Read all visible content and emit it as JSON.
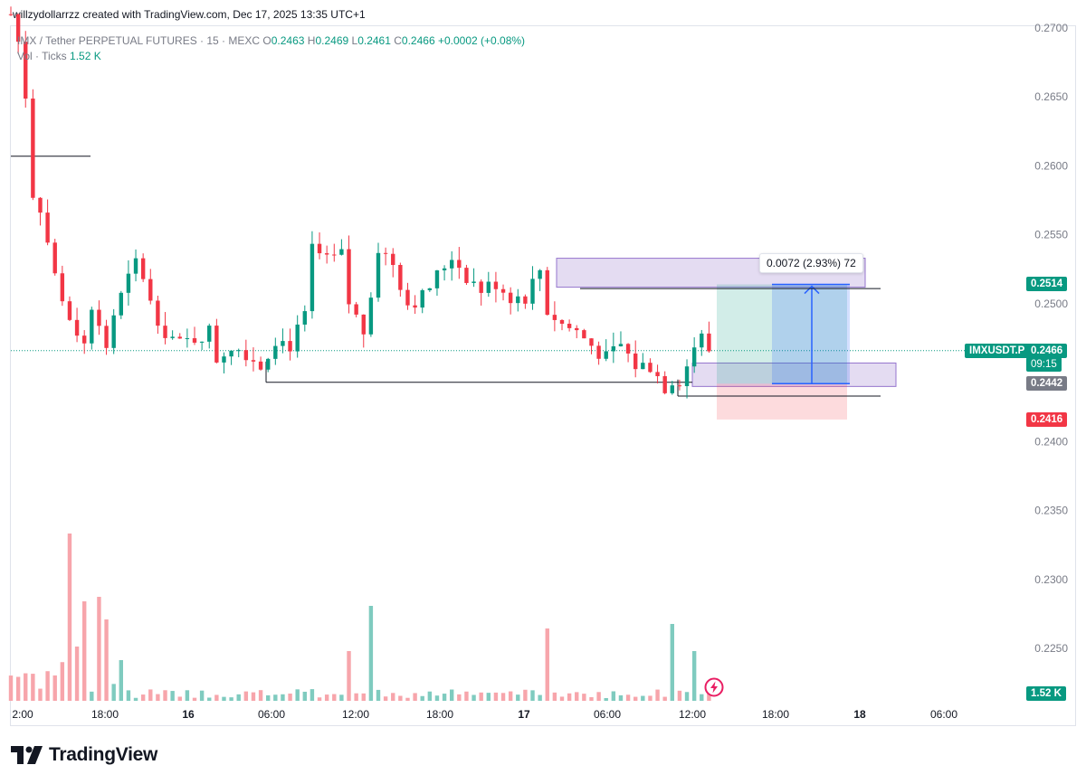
{
  "header": {
    "text": "willzydollarrzz created with TradingView.com, Dec 17, 2025 13:35 UTC+1"
  },
  "legend": {
    "symbol_line": "IMX / Tether PERPETUAL FUTURES · 15 · MEXC",
    "open_label": "O",
    "open": "0.2463",
    "high_label": "H",
    "high": "0.2469",
    "low_label": "L",
    "low": "0.2461",
    "close_label": "C",
    "close": "0.2466",
    "change": "+0.0002 (+0.08%)",
    "vol_label": "Vol · Ticks",
    "vol_value": "1.52 K"
  },
  "colors": {
    "up": "#089981",
    "down": "#f23645",
    "up_vol": "#7fcbbf",
    "down_vol": "#f7a5ab",
    "accent": "#2962ff"
  },
  "price_tags": {
    "target": "0.2514",
    "symbol": "IMXUSDT.P",
    "last": "0.2466",
    "countdown": "09:15",
    "entry": "0.2442",
    "stop": "0.2416",
    "volume": "1.52 K"
  },
  "measure": {
    "label": "0.0072 (2.93%) 72"
  },
  "brand": {
    "name": "TradingView"
  },
  "icons": {
    "logo": "tradingview-logo-icon",
    "flash": "flash-icon"
  },
  "chart_data": {
    "type": "candlestick",
    "interval": "15",
    "y_ticks": [
      "0.2700",
      "0.2650",
      "0.2600",
      "0.2550",
      "0.2500",
      "0.2400",
      "0.2350",
      "0.2300",
      "0.2250"
    ],
    "x_ticks": [
      "2:00",
      "18:00",
      "16",
      "06:00",
      "12:00",
      "18:00",
      "17",
      "06:00",
      "12:00",
      "18:00",
      "18",
      "06:00"
    ],
    "ylim": [
      0.222,
      0.2705
    ],
    "price_path": [
      [
        0,
        0.271
      ],
      [
        1.5,
        0.268
      ],
      [
        2.2,
        0.264
      ],
      [
        3,
        0.258
      ],
      [
        4,
        0.257
      ],
      [
        6,
        0.252
      ],
      [
        8,
        0.249
      ],
      [
        10,
        0.247
      ],
      [
        11,
        0.25
      ],
      [
        13,
        0.247
      ],
      [
        15,
        0.2505
      ],
      [
        17,
        0.253
      ],
      [
        18,
        0.252
      ],
      [
        19,
        0.25
      ],
      [
        21,
        0.248
      ],
      [
        23,
        0.247
      ],
      [
        25,
        0.2475
      ],
      [
        27,
        0.248
      ],
      [
        28,
        0.246
      ],
      [
        30,
        0.247
      ],
      [
        32,
        0.2465
      ],
      [
        34,
        0.2455
      ],
      [
        36,
        0.2475
      ],
      [
        38,
        0.247
      ],
      [
        40,
        0.249
      ],
      [
        41,
        0.254
      ],
      [
        43,
        0.253
      ],
      [
        45,
        0.2535
      ],
      [
        46,
        0.25
      ],
      [
        48,
        0.248
      ],
      [
        49,
        0.251
      ],
      [
        50,
        0.254
      ],
      [
        52,
        0.253
      ],
      [
        54,
        0.25
      ],
      [
        56,
        0.2505
      ],
      [
        58,
        0.252
      ],
      [
        60,
        0.2535
      ],
      [
        62,
        0.252
      ],
      [
        64,
        0.251
      ],
      [
        66,
        0.2515
      ],
      [
        68,
        0.2505
      ],
      [
        70,
        0.2505
      ],
      [
        72,
        0.2525
      ],
      [
        73,
        0.2495
      ],
      [
        75,
        0.2485
      ],
      [
        77,
        0.248
      ],
      [
        79,
        0.247
      ],
      [
        81,
        0.246
      ],
      [
        83,
        0.247
      ],
      [
        85,
        0.2455
      ],
      [
        87,
        0.2455
      ],
      [
        89,
        0.244
      ],
      [
        90,
        0.2445
      ],
      [
        91,
        0.2445
      ],
      [
        92,
        0.2455
      ],
      [
        93,
        0.247
      ],
      [
        94,
        0.2475
      ],
      [
        95,
        0.2466
      ]
    ],
    "volume_ticks_k": [],
    "drawings": {
      "horizontal_lines": [
        0.2607,
        0.2443,
        0.2511,
        0.2433
      ],
      "supply_zone": [
        0.2512,
        0.2533
      ],
      "demand_zone": [
        0.244,
        0.2457
      ],
      "long_position": {
        "entry": 0.2442,
        "target": 0.2514,
        "stop": 0.2416
      },
      "measure_change": "0.0072 (2.93%) 72"
    }
  }
}
